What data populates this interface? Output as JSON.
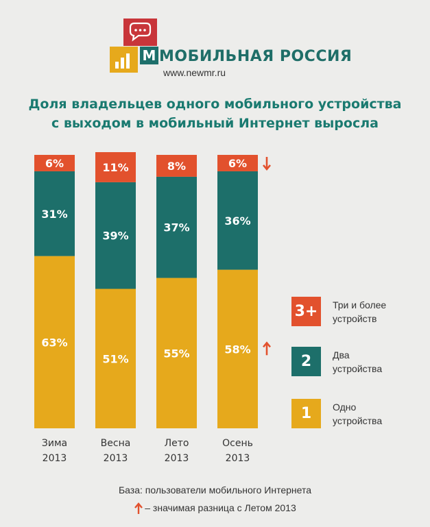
{
  "brand": {
    "name": "МОБИЛЬНАЯ РОССИЯ",
    "url": "www.newmr.ru"
  },
  "colors": {
    "one_device": "#e6a91c",
    "two_devices": "#1d6f6a",
    "three_plus": "#e2512d",
    "title": "#1a7a70",
    "arrow": "#e2512d"
  },
  "chart_data": {
    "type": "bar",
    "stacked": true,
    "title_lines": [
      "Доля владельцев одного мобильного устройства",
      "с выходом в мобильный Интернет выросла"
    ],
    "categories": [
      [
        "Зима",
        "2013"
      ],
      [
        "Весна",
        "2013"
      ],
      [
        "Лето",
        "2013"
      ],
      [
        "Осень",
        "2013"
      ]
    ],
    "series": [
      {
        "key": "1",
        "name": [
          "Одно",
          "устройства"
        ],
        "values": [
          63,
          51,
          55,
          58
        ],
        "labels": [
          "63%",
          "51%",
          "55%",
          "58%"
        ],
        "color": "#e6a91c"
      },
      {
        "key": "2",
        "name": [
          "Два",
          "устройства"
        ],
        "values": [
          31,
          39,
          37,
          36
        ],
        "labels": [
          "31%",
          "39%",
          "37%",
          "36%"
        ],
        "color": "#1d6f6a"
      },
      {
        "key": "3+",
        "name": [
          "Три и более",
          "устройств"
        ],
        "values": [
          6,
          11,
          8,
          6
        ],
        "labels": [
          "6%",
          "11%",
          "8%",
          "6%"
        ],
        "color": "#e2512d"
      }
    ],
    "significance_markers": [
      {
        "category_index": 3,
        "series_key": "3+",
        "direction": "down"
      },
      {
        "category_index": 3,
        "series_key": "1",
        "direction": "up"
      }
    ],
    "ylim": [
      0,
      100
    ],
    "grid": false,
    "legend_position": "right"
  },
  "footer": {
    "base": "База: пользователи мобильного Интернета",
    "note": "– значимая разница с Летом 2013"
  }
}
